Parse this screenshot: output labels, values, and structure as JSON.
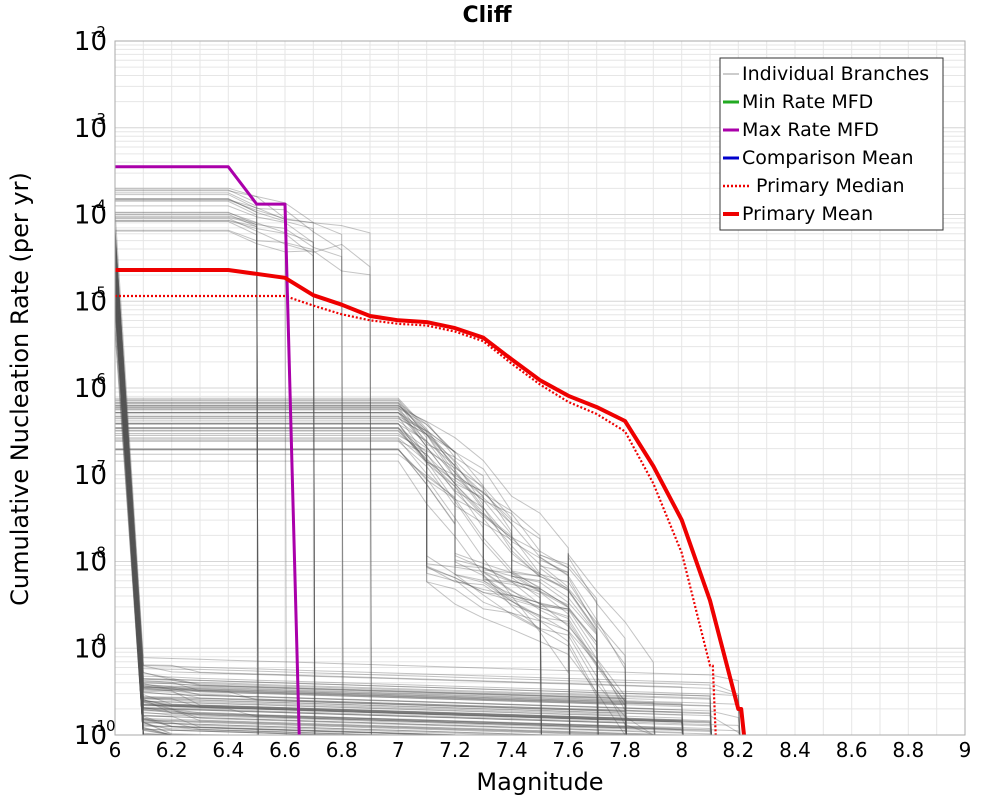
{
  "chart_data": {
    "type": "line",
    "title": "Cliff",
    "xlabel": "Magnitude",
    "ylabel": "Cumulative Nucleation Rate (per yr)",
    "xlim": [
      6,
      9
    ],
    "ylim_log10": [
      -10,
      -2
    ],
    "y_scale": "log",
    "grid": true,
    "legend_position": "top-right",
    "x_ticks": [
      "6",
      "6.2",
      "6.4",
      "6.6",
      "6.8",
      "7",
      "7.2",
      "7.4",
      "7.6",
      "7.8",
      "8",
      "8.2",
      "8.4",
      "8.6",
      "8.8",
      "9"
    ],
    "y_ticks": [
      {
        "base": "10",
        "exp": "-2"
      },
      {
        "base": "10",
        "exp": "-3"
      },
      {
        "base": "10",
        "exp": "-4"
      },
      {
        "base": "10",
        "exp": "-5"
      },
      {
        "base": "10",
        "exp": "-6"
      },
      {
        "base": "10",
        "exp": "-7"
      },
      {
        "base": "10",
        "exp": "-8"
      },
      {
        "base": "10",
        "exp": "-9"
      },
      {
        "base": "10",
        "exp": "-10"
      }
    ],
    "colors": {
      "branches": "#555555",
      "min_rate": "#22aa22",
      "max_rate": "#aa00aa",
      "comparison": "#0000cc",
      "primary": "#ee0000",
      "grid": "#e6e6e6",
      "frame": "#aaaaaa"
    },
    "legend": [
      {
        "label": "Individual Branches",
        "style": "thin-gray"
      },
      {
        "label": "Min Rate MFD",
        "style": "green"
      },
      {
        "label": "Max Rate MFD",
        "style": "purple"
      },
      {
        "label": "Comparison Mean",
        "style": "blue"
      },
      {
        "label": "Primary Median",
        "style": "red-dotted"
      },
      {
        "label": "Primary Mean",
        "style": "red-thick"
      }
    ],
    "series": [
      {
        "name": "Max Rate MFD",
        "style": "purple",
        "x": [
          6.0,
          6.4,
          6.5,
          6.6,
          6.65
        ],
        "y_log10": [
          -3.45,
          -3.45,
          -3.88,
          -3.88,
          -10
        ]
      },
      {
        "name": "Primary Mean",
        "style": "red-thick",
        "x": [
          6.0,
          6.4,
          6.6,
          6.7,
          6.8,
          6.9,
          7.0,
          7.1,
          7.2,
          7.3,
          7.4,
          7.5,
          7.6,
          7.7,
          7.8,
          7.9,
          8.0,
          8.1,
          8.2,
          8.21,
          8.22
        ],
        "y_log10": [
          -4.64,
          -4.64,
          -4.73,
          -4.93,
          -5.04,
          -5.17,
          -5.22,
          -5.24,
          -5.31,
          -5.42,
          -5.67,
          -5.91,
          -6.09,
          -6.22,
          -6.38,
          -6.9,
          -7.52,
          -8.45,
          -9.7,
          -9.7,
          -10
        ]
      },
      {
        "name": "Primary Median",
        "style": "red-dotted",
        "x": [
          6.0,
          6.4,
          6.6,
          6.7,
          6.8,
          6.9,
          7.0,
          7.1,
          7.2,
          7.3,
          7.4,
          7.5,
          7.6,
          7.7,
          7.8,
          7.9,
          8.0,
          8.1,
          8.11,
          8.12
        ],
        "y_log10": [
          -4.94,
          -4.94,
          -4.94,
          -5.05,
          -5.15,
          -5.22,
          -5.26,
          -5.28,
          -5.35,
          -5.46,
          -5.72,
          -5.96,
          -6.16,
          -6.3,
          -6.5,
          -7.1,
          -7.9,
          -9.2,
          -9.2,
          -10
        ]
      }
    ]
  }
}
